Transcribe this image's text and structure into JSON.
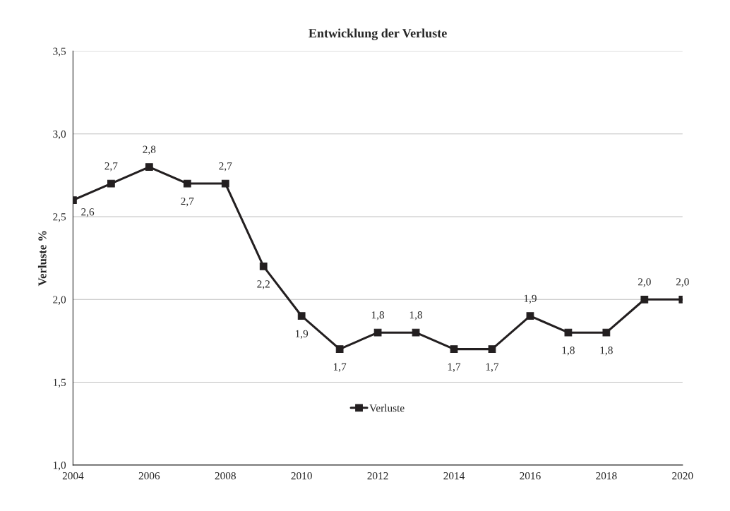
{
  "chart_data": {
    "type": "line",
    "title": "Entwicklung der Verluste",
    "ylabel": "Verluste %",
    "x": [
      2004,
      2005,
      2006,
      2007,
      2008,
      2009,
      2010,
      2011,
      2012,
      2013,
      2014,
      2015,
      2016,
      2017,
      2018,
      2019,
      2020
    ],
    "series": [
      {
        "name": "Verluste",
        "color": "#231f20",
        "values": [
          2.6,
          2.7,
          2.8,
          2.7,
          2.7,
          2.2,
          1.9,
          1.7,
          1.8,
          1.8,
          1.7,
          1.7,
          1.9,
          1.8,
          1.8,
          2.0,
          2.0
        ],
        "value_labels": [
          "2,6",
          "2,7",
          "2,8",
          "2,7",
          "2,7",
          "2,2",
          "1,9",
          "1,7",
          "1,8",
          "1,8",
          "1,7",
          "1,7",
          "1,9",
          "1,8",
          "1,8",
          "2,0",
          "2,0"
        ]
      }
    ],
    "xlim": [
      2004,
      2020
    ],
    "xticks": [
      2004,
      2006,
      2008,
      2010,
      2012,
      2014,
      2016,
      2018,
      2020
    ],
    "ylim": [
      1.0,
      3.5
    ],
    "yticks": [
      {
        "value": 1.0,
        "label": "1,0"
      },
      {
        "value": 1.5,
        "label": "1,5"
      },
      {
        "value": 2.0,
        "label": "2,0"
      },
      {
        "value": 2.5,
        "label": "2,5"
      },
      {
        "value": 3.0,
        "label": "3,0"
      },
      {
        "value": 3.5,
        "label": "3,5"
      }
    ],
    "grid": "y",
    "legend": "bottom",
    "marker": "square",
    "line_style": "solid"
  }
}
